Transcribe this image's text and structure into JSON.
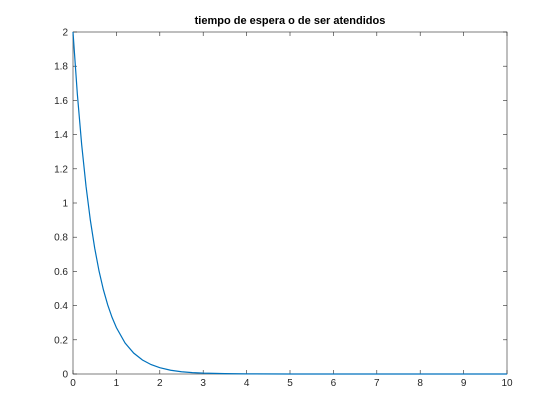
{
  "chart_data": {
    "type": "line",
    "title": "tiempo de espera o de ser atendidos",
    "xlabel": "",
    "ylabel": "",
    "xlim": [
      0,
      10
    ],
    "ylim": [
      0,
      2
    ],
    "xticks": [
      0,
      1,
      2,
      3,
      4,
      5,
      6,
      7,
      8,
      9,
      10
    ],
    "yticks": [
      0,
      0.2,
      0.4,
      0.6,
      0.8,
      1,
      1.2,
      1.4,
      1.6,
      1.8,
      2
    ],
    "grid": false,
    "colors": {
      "series": "#0072bd",
      "axes": "#262626"
    },
    "series": [
      {
        "x": [
          0,
          0.1,
          0.2,
          0.3,
          0.4,
          0.5,
          0.6,
          0.7,
          0.8,
          0.9,
          1.0,
          1.2,
          1.4,
          1.6,
          1.8,
          2.0,
          2.25,
          2.5,
          2.75,
          3.0,
          3.5,
          4.0,
          5.0,
          6.0,
          7.0,
          8.0,
          9.0,
          10.0
        ],
        "y": [
          2.0,
          1.637,
          1.341,
          1.098,
          0.899,
          0.736,
          0.602,
          0.493,
          0.404,
          0.331,
          0.271,
          0.181,
          0.122,
          0.082,
          0.055,
          0.037,
          0.022,
          0.013,
          0.008,
          0.005,
          0.002,
          0.0007,
          0.0001,
          0.0,
          0.0,
          0.0,
          0.0,
          0.0
        ]
      }
    ]
  }
}
